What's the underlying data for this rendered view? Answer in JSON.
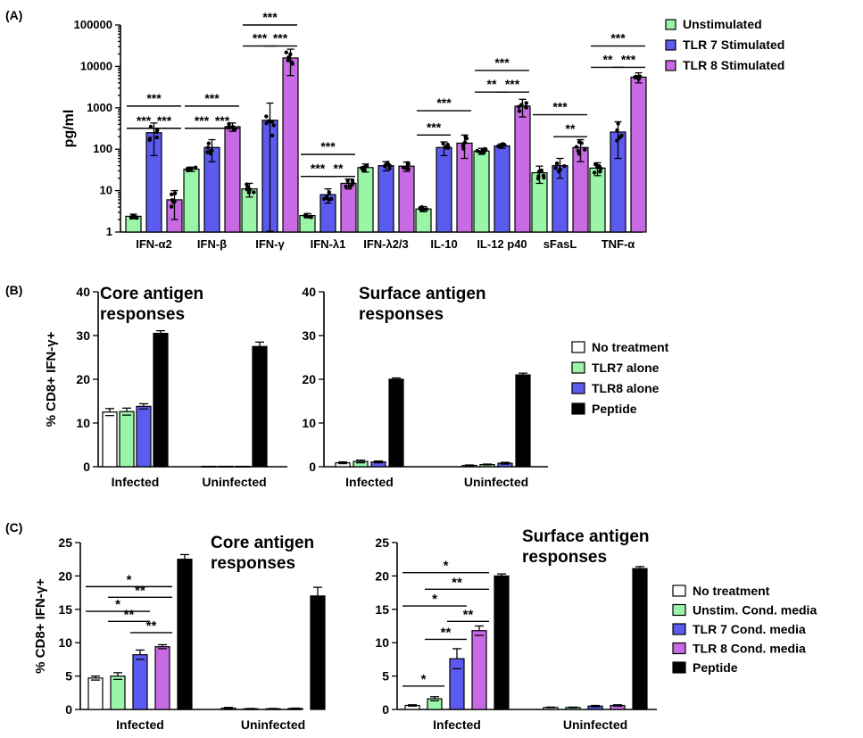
{
  "colors": {
    "unstim": "#99f5a8",
    "tlr7": "#5b5bf0",
    "tlr8": "#c86ae3",
    "none": "#ffffff",
    "peptide": "#000000"
  },
  "chart_data": [
    {
      "id": "A",
      "panel_label": "(A)",
      "type": "bar",
      "yscale": "log",
      "ylim": [
        1,
        100000
      ],
      "yticks": [
        1,
        10,
        100,
        1000,
        10000,
        100000
      ],
      "ytick_labels": [
        "1",
        "10",
        "100",
        "1000",
        "10000",
        "100000"
      ],
      "ylabel": "pg/ml",
      "categories": [
        "IFN-α2",
        "IFN-β",
        "IFN-γ",
        "IFN-λ1",
        "IFN-λ2/3",
        "IL-10",
        "IL-12 p40",
        "sFasL",
        "TNF-α"
      ],
      "legend": [
        "Unstimulated",
        "TLR 7 Stimulated",
        "TLR 8 Stimulated"
      ],
      "series": [
        {
          "name": "Unstimulated",
          "color": "#99f5a8",
          "values": [
            2.4,
            33,
            11,
            2.5,
            36,
            3.6,
            90,
            27,
            35
          ],
          "err": [
            0.3,
            4,
            4,
            0.3,
            8,
            0.5,
            15,
            12,
            12
          ]
        },
        {
          "name": "TLR 7 Stimulated",
          "color": "#5b5bf0",
          "values": [
            250,
            110,
            500,
            8,
            40,
            110,
            120,
            40,
            260
          ],
          "err": [
            180,
            60,
            800,
            3,
            10,
            40,
            15,
            20,
            200
          ]
        },
        {
          "name": "TLR 8 Stimulated",
          "color": "#c86ae3",
          "values": [
            6,
            350,
            16000,
            15,
            39,
            140,
            1100,
            110,
            5500
          ],
          "err": [
            4,
            80,
            10000,
            4,
            10,
            80,
            500,
            60,
            1500
          ]
        }
      ],
      "significance": [
        {
          "cat": 0,
          "from": 0,
          "to": 1,
          "label": "***",
          "y": 320
        },
        {
          "cat": 0,
          "from": 1,
          "to": 2,
          "label": "***",
          "y": 320
        },
        {
          "cat": 0,
          "from": 0,
          "to": 2,
          "label": "***",
          "y": 1100
        },
        {
          "cat": 1,
          "from": 0,
          "to": 1,
          "label": "***",
          "y": 320
        },
        {
          "cat": 1,
          "from": 1,
          "to": 2,
          "label": "***",
          "y": 320
        },
        {
          "cat": 1,
          "from": 0,
          "to": 2,
          "label": "***",
          "y": 1100
        },
        {
          "cat": 2,
          "from": 0,
          "to": 1,
          "label": "***",
          "y": 31000
        },
        {
          "cat": 2,
          "from": 1,
          "to": 2,
          "label": "***",
          "y": 31000
        },
        {
          "cat": 2,
          "from": 0,
          "to": 2,
          "label": "***",
          "y": 100000
        },
        {
          "cat": 3,
          "from": 0,
          "to": 1,
          "label": "***",
          "y": 22
        },
        {
          "cat": 3,
          "from": 1,
          "to": 2,
          "label": "**",
          "y": 22
        },
        {
          "cat": 3,
          "from": 0,
          "to": 2,
          "label": "***",
          "y": 75
        },
        {
          "cat": 5,
          "from": 0,
          "to": 1,
          "label": "***",
          "y": 220
        },
        {
          "cat": 5,
          "from": 0,
          "to": 2,
          "label": "***",
          "y": 850
        },
        {
          "cat": 6,
          "from": 0,
          "to": 1,
          "label": "**",
          "y": 2400
        },
        {
          "cat": 6,
          "from": 1,
          "to": 2,
          "label": "***",
          "y": 2400
        },
        {
          "cat": 6,
          "from": 0,
          "to": 2,
          "label": "***",
          "y": 8000
        },
        {
          "cat": 7,
          "from": 1,
          "to": 2,
          "label": "**",
          "y": 200
        },
        {
          "cat": 7,
          "from": 0,
          "to": 2,
          "label": "***",
          "y": 680
        },
        {
          "cat": 8,
          "from": 0,
          "to": 1,
          "label": "**",
          "y": 9500
        },
        {
          "cat": 8,
          "from": 1,
          "to": 2,
          "label": "***",
          "y": 9500
        },
        {
          "cat": 8,
          "from": 0,
          "to": 2,
          "label": "***",
          "y": 31000
        }
      ]
    },
    {
      "id": "B1",
      "panel_label": "(B)",
      "type": "bar",
      "title": "Core antigen responses",
      "title_lines": [
        "Core antigen",
        "responses"
      ],
      "ylabel": "% CD8+ IFN-γ+",
      "ylim": [
        0,
        40
      ],
      "yticks": [
        0,
        10,
        20,
        30,
        40
      ],
      "categories": [
        "Infected",
        "Uninfected"
      ],
      "series": [
        {
          "name": "No treatment",
          "color": "#ffffff",
          "values": [
            12.5,
            0.1
          ],
          "err": [
            0.8,
            0
          ]
        },
        {
          "name": "TLR7 alone",
          "color": "#99f5a8",
          "values": [
            12.6,
            0.1
          ],
          "err": [
            0.8,
            0
          ]
        },
        {
          "name": "TLR8 alone",
          "color": "#5b5bf0",
          "values": [
            13.8,
            0.1
          ],
          "err": [
            0.6,
            0
          ]
        },
        {
          "name": "Peptide",
          "color": "#000000",
          "values": [
            30.5,
            27.5
          ],
          "err": [
            0.6,
            1.0
          ]
        }
      ]
    },
    {
      "id": "B2",
      "type": "bar",
      "title": "Surface antigen responses",
      "title_lines": [
        "Surface antigen",
        "responses"
      ],
      "ylim": [
        0,
        40
      ],
      "yticks": [
        0,
        10,
        20,
        30,
        40
      ],
      "categories": [
        "Infected",
        "Uninfected"
      ],
      "legend": [
        "No treatment",
        "TLR7 alone",
        "TLR8 alone",
        "Peptide"
      ],
      "series": [
        {
          "name": "No treatment",
          "color": "#ffffff",
          "values": [
            0.9,
            0.3
          ],
          "err": [
            0.2,
            0.1
          ]
        },
        {
          "name": "TLR7 alone",
          "color": "#99f5a8",
          "values": [
            1.2,
            0.5
          ],
          "err": [
            0.3,
            0.1
          ]
        },
        {
          "name": "TLR8 alone",
          "color": "#5b5bf0",
          "values": [
            1.1,
            0.8
          ],
          "err": [
            0.2,
            0.2
          ]
        },
        {
          "name": "Peptide",
          "color": "#000000",
          "values": [
            20.0,
            21.0
          ],
          "err": [
            0.3,
            0.4
          ]
        }
      ]
    },
    {
      "id": "C1",
      "panel_label": "(C)",
      "type": "bar",
      "title": "Core antigen responses",
      "title_lines": [
        "Core antigen",
        "responses"
      ],
      "ylabel": "% CD8+ IFN-γ+",
      "ylim": [
        0,
        25
      ],
      "yticks": [
        0,
        5,
        10,
        15,
        20,
        25
      ],
      "categories": [
        "Infected",
        "Uninfected"
      ],
      "series": [
        {
          "name": "No treatment",
          "color": "#ffffff",
          "values": [
            4.7,
            0.2
          ],
          "err": [
            0.3,
            0.1
          ]
        },
        {
          "name": "Unstim. Cond. media",
          "color": "#99f5a8",
          "values": [
            5.0,
            0.1
          ],
          "err": [
            0.5,
            0.05
          ]
        },
        {
          "name": "TLR 7 Cond. media",
          "color": "#5b5bf0",
          "values": [
            8.2,
            0.1
          ],
          "err": [
            0.7,
            0.05
          ]
        },
        {
          "name": "TLR 8 Cond. media",
          "color": "#c86ae3",
          "values": [
            9.4,
            0.15
          ],
          "err": [
            0.3,
            0.05
          ]
        },
        {
          "name": "Peptide",
          "color": "#000000",
          "values": [
            22.5,
            17.0
          ],
          "err": [
            0.7,
            1.3
          ]
        }
      ],
      "significance": [
        {
          "from": 2,
          "to": 3,
          "label": "**",
          "y": 11.5
        },
        {
          "from": 1,
          "to": 2,
          "label": "**",
          "y": 13.2
        },
        {
          "from": 0,
          "to": 2,
          "label": "*",
          "y": 14.7
        },
        {
          "from": 1,
          "to": 3,
          "label": "**",
          "y": 16.8
        },
        {
          "from": 0,
          "to": 3,
          "label": "*",
          "y": 18.4
        }
      ]
    },
    {
      "id": "C2",
      "type": "bar",
      "title": "Surface antigen responses",
      "title_lines": [
        "Surface antigen",
        "responses"
      ],
      "ylim": [
        0,
        25
      ],
      "yticks": [
        0,
        5,
        10,
        15,
        20,
        25
      ],
      "categories": [
        "Infected",
        "Uninfected"
      ],
      "legend": [
        "No treatment",
        "Unstim. Cond. media",
        "TLR 7 Cond. media",
        "TLR 8 Cond. media",
        "Peptide"
      ],
      "series": [
        {
          "name": "No treatment",
          "color": "#ffffff",
          "values": [
            0.6,
            0.3
          ],
          "err": [
            0.1,
            0.05
          ]
        },
        {
          "name": "Unstim. Cond. media",
          "color": "#99f5a8",
          "values": [
            1.6,
            0.3
          ],
          "err": [
            0.3,
            0.05
          ]
        },
        {
          "name": "TLR 7 Cond. media",
          "color": "#5b5bf0",
          "values": [
            7.6,
            0.5
          ],
          "err": [
            1.5,
            0.1
          ]
        },
        {
          "name": "TLR 8 Cond. media",
          "color": "#c86ae3",
          "values": [
            11.8,
            0.6
          ],
          "err": [
            0.7,
            0.1
          ]
        },
        {
          "name": "Peptide",
          "color": "#000000",
          "values": [
            20.0,
            21.1
          ],
          "err": [
            0.3,
            0.3
          ]
        }
      ],
      "significance": [
        {
          "from": 0,
          "to": 1,
          "label": "*",
          "y": 3.5
        },
        {
          "from": 2,
          "to": 3,
          "label": "**",
          "y": 13.2
        },
        {
          "from": 1,
          "to": 2,
          "label": "**",
          "y": 10.5
        },
        {
          "from": 0,
          "to": 2,
          "label": "*",
          "y": 15.5
        },
        {
          "from": 1,
          "to": 3,
          "label": "**",
          "y": 18.0
        },
        {
          "from": 0,
          "to": 3,
          "label": "*",
          "y": 20.5
        }
      ]
    }
  ]
}
